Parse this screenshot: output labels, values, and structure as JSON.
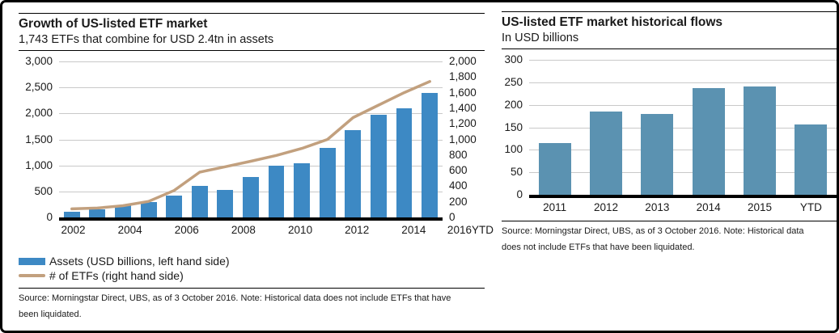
{
  "window": {
    "background": "#ffffff",
    "border_color": "#000000"
  },
  "colors": {
    "left_bar": "#3d89c4",
    "right_bar": "#5b92b1",
    "etf_line": "#c2a07e",
    "gridline": "#c9c9c9",
    "axis_baseline": "#000000"
  },
  "chart_data": [
    {
      "id": "etf-growth",
      "type": "bar+line",
      "title": "Growth of US-listed ETF market",
      "subtitle": "1,743 ETFs that combine for USD 2.4tn in assets",
      "categories": [
        "2002",
        "2003",
        "2004",
        "2005",
        "2006",
        "2007",
        "2008",
        "2009",
        "2010",
        "2011",
        "2012",
        "2013",
        "2014",
        "2015",
        "2016 YTD"
      ],
      "series": [
        {
          "name": "Assets (USD billions, left hand side)",
          "type": "bar",
          "axis": "left",
          "color": "#3d89c4",
          "values": [
            102,
            151,
            228,
            301,
            423,
            608,
            531,
            777,
            992,
            1048,
            1337,
            1675,
            1974,
            2100,
            2400
          ]
        },
        {
          "name": "# of ETFs (right hand side)",
          "type": "line",
          "axis": "right",
          "color": "#c2a07e",
          "values": [
            110,
            120,
            150,
            205,
            345,
            580,
            650,
            720,
            795,
            885,
            1000,
            1280,
            1440,
            1600,
            1743
          ]
        }
      ],
      "left_axis": {
        "min": 0,
        "max": 3000,
        "tick_labels": [
          "3,000",
          "2,500",
          "2,000",
          "1,500",
          "1,000",
          "500",
          "0"
        ]
      },
      "right_axis": {
        "min": 0,
        "max": 2000,
        "tick_labels": [
          "2,000",
          "1,800",
          "1,600",
          "1,400",
          "1,200",
          "1,000",
          "800",
          "600",
          "400",
          "200",
          "0"
        ]
      },
      "x_ticks": {
        "indices": [
          0,
          2,
          4,
          6,
          8,
          10,
          12,
          14
        ],
        "labels": [
          "2002",
          "2004",
          "2006",
          "2008",
          "2010",
          "2012",
          "2014",
          "2016"
        ],
        "last_sub_label": "YTD"
      },
      "grid": true,
      "legend_position": "bottom-left",
      "source_line1": "Source: Morningstar Direct, UBS, as of 3 October 2016. Note: Historical data does not include ETFs that have",
      "source_line2": "been liquidated."
    },
    {
      "id": "etf-flows",
      "type": "bar",
      "title": "US-listed ETF market historical flows",
      "subtitle": "In USD billions",
      "categories": [
        "2011",
        "2012",
        "2013",
        "2014",
        "2015",
        "YTD"
      ],
      "values": [
        115,
        185,
        180,
        237,
        240,
        157
      ],
      "bar_color": "#5b92b1",
      "ylim": [
        0,
        300
      ],
      "y_tick_labels": [
        "300",
        "250",
        "200",
        "150",
        "100",
        "50",
        "0"
      ],
      "grid": true,
      "source_line1": "Source: Morningstar Direct, UBS, as of 3 October 2016. Note: Historical data",
      "source_line2": "does not include ETFs that have been liquidated."
    }
  ]
}
